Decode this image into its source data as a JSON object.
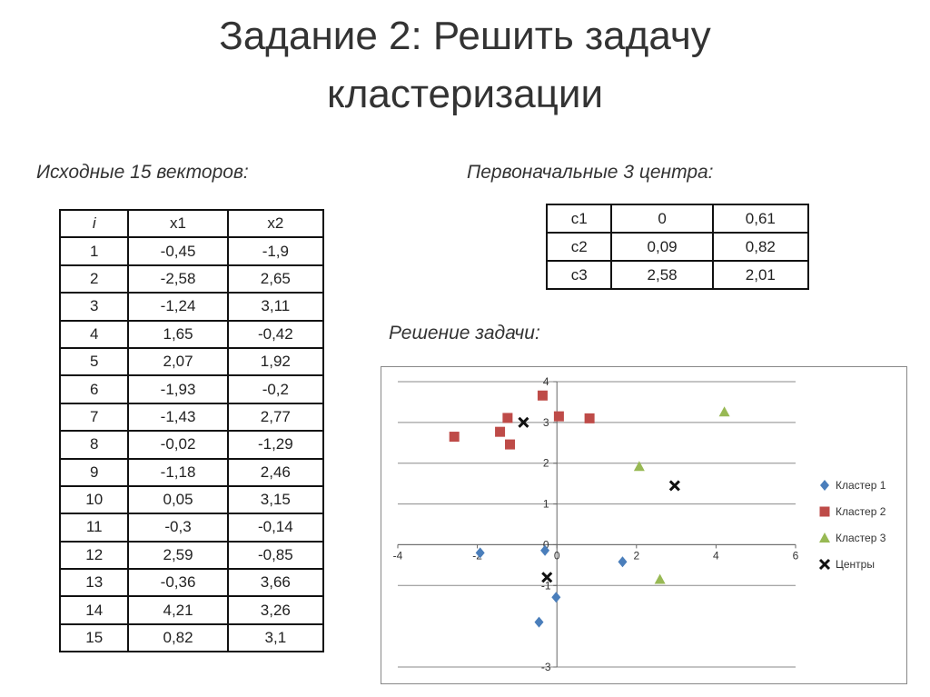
{
  "slide": {
    "title_line1": "Задание 2: Решить задачу",
    "title_line2": "кластеризации",
    "vectors_heading": "Исходные 15 векторов:",
    "centers_heading": "Первоначальные 3 центра:",
    "solution_heading": "Решение задачи:"
  },
  "vectors_table": {
    "headers": [
      "i",
      "x1",
      "x2"
    ],
    "rows": [
      [
        "1",
        "-0,45",
        "-1,9"
      ],
      [
        "2",
        "-2,58",
        "2,65"
      ],
      [
        "3",
        "-1,24",
        "3,11"
      ],
      [
        "4",
        "1,65",
        "-0,42"
      ],
      [
        "5",
        "2,07",
        "1,92"
      ],
      [
        "6",
        "-1,93",
        "-0,2"
      ],
      [
        "7",
        "-1,43",
        "2,77"
      ],
      [
        "8",
        "-0,02",
        "-1,29"
      ],
      [
        "9",
        "-1,18",
        "2,46"
      ],
      [
        "10",
        "0,05",
        "3,15"
      ],
      [
        "11",
        "-0,3",
        "-0,14"
      ],
      [
        "12",
        "2,59",
        "-0,85"
      ],
      [
        "13",
        "-0,36",
        "3,66"
      ],
      [
        "14",
        "4,21",
        "3,26"
      ],
      [
        "15",
        "0,82",
        "3,1"
      ]
    ]
  },
  "centers_table": {
    "rows": [
      [
        "c1",
        "0",
        "0,61"
      ],
      [
        "c2",
        "0,09",
        "0,82"
      ],
      [
        "c3",
        "2,58",
        "2,01"
      ]
    ]
  },
  "chart_data": {
    "type": "scatter",
    "title": "",
    "xlabel": "",
    "ylabel": "",
    "xlim": [
      -4,
      6
    ],
    "ylim": [
      -3,
      4
    ],
    "xticks": [
      -4,
      -2,
      0,
      2,
      4,
      6
    ],
    "yticks": [
      -3,
      -1,
      0,
      1,
      2,
      3,
      4
    ],
    "grid": "horizontal",
    "legend_position": "right",
    "series": [
      {
        "name": "Кластер 1",
        "marker": "diamond",
        "color": "#4a7ebb",
        "points": [
          [
            -1.93,
            -0.2
          ],
          [
            -0.3,
            -0.14
          ],
          [
            1.65,
            -0.42
          ],
          [
            -0.02,
            -1.29
          ],
          [
            -0.45,
            -1.9
          ]
        ]
      },
      {
        "name": "Кластер 2",
        "marker": "square",
        "color": "#be4b48",
        "points": [
          [
            -2.58,
            2.65
          ],
          [
            -1.43,
            2.77
          ],
          [
            -1.24,
            3.11
          ],
          [
            -1.18,
            2.46
          ],
          [
            0.05,
            3.15
          ],
          [
            -0.36,
            3.66
          ],
          [
            0.82,
            3.1
          ]
        ]
      },
      {
        "name": "Кластер 3",
        "marker": "triangle",
        "color": "#98b954",
        "points": [
          [
            2.07,
            1.92
          ],
          [
            4.21,
            3.26
          ],
          [
            2.59,
            -0.85
          ]
        ]
      },
      {
        "name": "Центры",
        "marker": "x",
        "color": "#111111",
        "points": [
          [
            -0.84,
            3.0
          ],
          [
            2.96,
            1.45
          ],
          [
            -0.25,
            -0.8
          ]
        ]
      }
    ]
  }
}
